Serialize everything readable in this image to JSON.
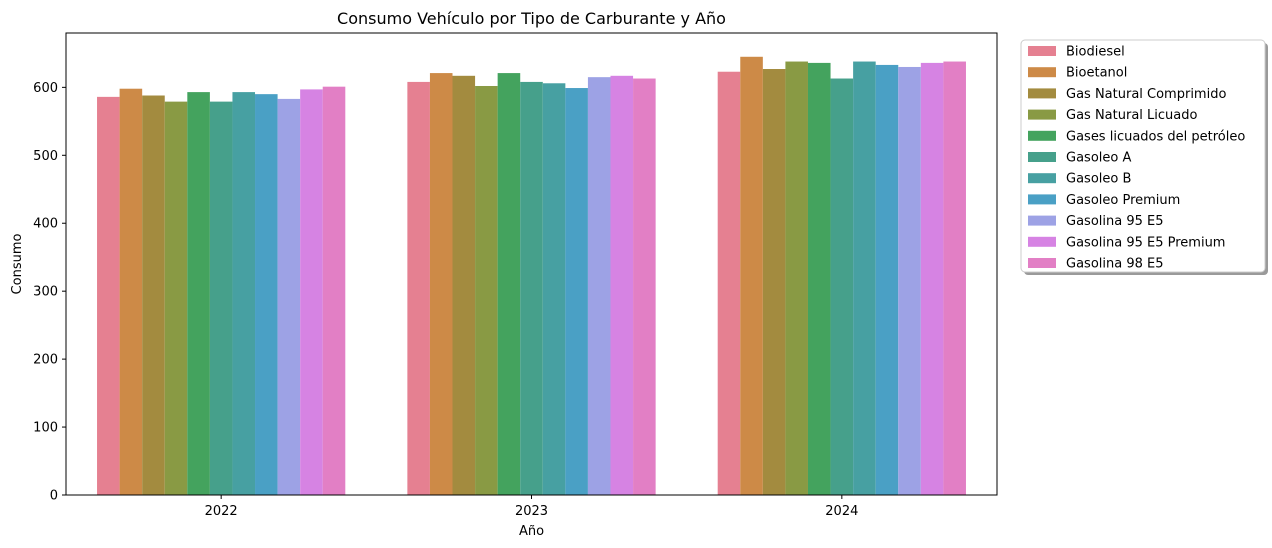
{
  "chart_data": {
    "type": "bar",
    "title": "Consumo Vehículo por Tipo de Carburante y Año",
    "xlabel": "Año",
    "ylabel": "Consumo",
    "categories": [
      "2022",
      "2023",
      "2024"
    ],
    "ylim": [
      0,
      680
    ],
    "yticks": [
      0,
      100,
      200,
      300,
      400,
      500,
      600
    ],
    "legend_position": "outside-right-top",
    "grid": false,
    "series": [
      {
        "name": "Biodiesel",
        "color": "#e58091",
        "values": [
          586,
          608,
          623
        ]
      },
      {
        "name": "Bioetanol",
        "color": "#cd8a47",
        "values": [
          598,
          621,
          645
        ]
      },
      {
        "name": "Gas Natural Comprimido",
        "color": "#a38b3f",
        "values": [
          588,
          617,
          627
        ]
      },
      {
        "name": "Gas Natural Licuado",
        "color": "#899a44",
        "values": [
          579,
          602,
          638
        ]
      },
      {
        "name": "Gases licuados del petróleo",
        "color": "#44a35e",
        "values": [
          593,
          621,
          636
        ]
      },
      {
        "name": "Gasoleo A",
        "color": "#46a08b",
        "values": [
          579,
          608,
          613
        ]
      },
      {
        "name": "Gasoleo B",
        "color": "#47a0a2",
        "values": [
          593,
          606,
          638
        ]
      },
      {
        "name": "Gasoleo Premium",
        "color": "#4aa0c5",
        "values": [
          590,
          599,
          633
        ]
      },
      {
        "name": "Gasolina 95 E5",
        "color": "#9da2e5",
        "values": [
          583,
          615,
          630
        ]
      },
      {
        "name": "Gasolina 95 E5 Premium",
        "color": "#d683e3",
        "values": [
          597,
          617,
          636
        ]
      },
      {
        "name": "Gasolina 98 E5",
        "color": "#e27fc5",
        "values": [
          601,
          613,
          638
        ]
      }
    ]
  }
}
